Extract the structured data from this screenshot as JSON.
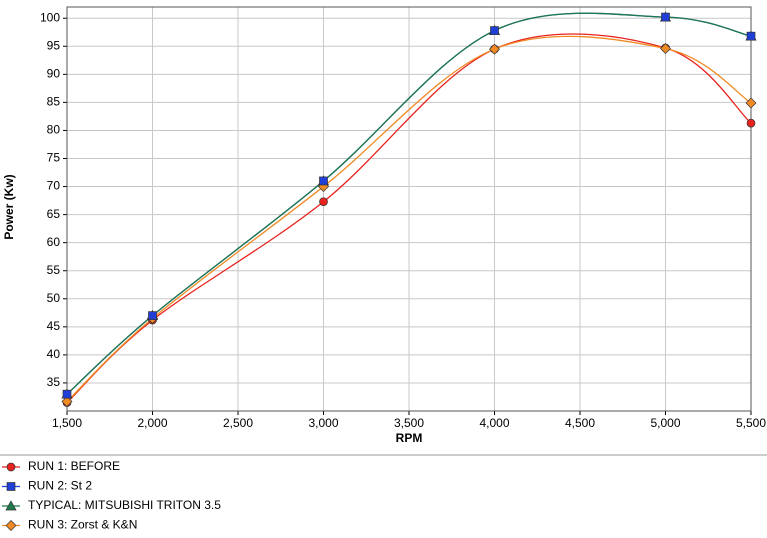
{
  "chart_data": {
    "type": "line",
    "xlabel": "RPM",
    "ylabel": "Power (Kw)",
    "x": [
      1500,
      2000,
      3000,
      4000,
      5000,
      5500
    ],
    "series": [
      {
        "name": "RUN 1: BEFORE",
        "color": "#e8231e",
        "marker": "circle",
        "values": [
          31.5,
          46.2,
          67.3,
          94.5,
          94.7,
          81.3
        ]
      },
      {
        "name": "RUN 2: St 2",
        "color": "#1f3fd6",
        "marker": "square",
        "values": [
          33,
          47,
          71,
          97.8,
          100.2,
          96.8
        ]
      },
      {
        "name": "TYPICAL: MITSUBISHI TRITON 3.5",
        "color": "#1d7a4a",
        "marker": "triangle",
        "values": [
          33,
          47,
          71,
          97.8,
          100.2,
          96.8
        ]
      },
      {
        "name": "RUN 3: Zorst & K&N",
        "color": "#f08a24",
        "marker": "diamond",
        "values": [
          31.7,
          46.5,
          70,
          94.5,
          94.6,
          84.9
        ]
      }
    ],
    "xlim": [
      1500,
      5500
    ],
    "xticks": [
      {
        "value": 1500,
        "label": "1,500"
      },
      {
        "value": 2000,
        "label": "2,000"
      },
      {
        "value": 2500,
        "label": "2,500"
      },
      {
        "value": 3000,
        "label": "3,000"
      },
      {
        "value": 3500,
        "label": "3,500"
      },
      {
        "value": 4000,
        "label": "4,000"
      },
      {
        "value": 4500,
        "label": "4,500"
      },
      {
        "value": 5000,
        "label": "5,000"
      },
      {
        "value": 5500,
        "label": "5,500"
      }
    ],
    "ylim": [
      30,
      102
    ],
    "yticks": [
      35,
      40,
      45,
      50,
      55,
      60,
      65,
      70,
      75,
      80,
      85,
      90,
      95,
      100
    ],
    "grid": true,
    "legend": "bottom"
  }
}
